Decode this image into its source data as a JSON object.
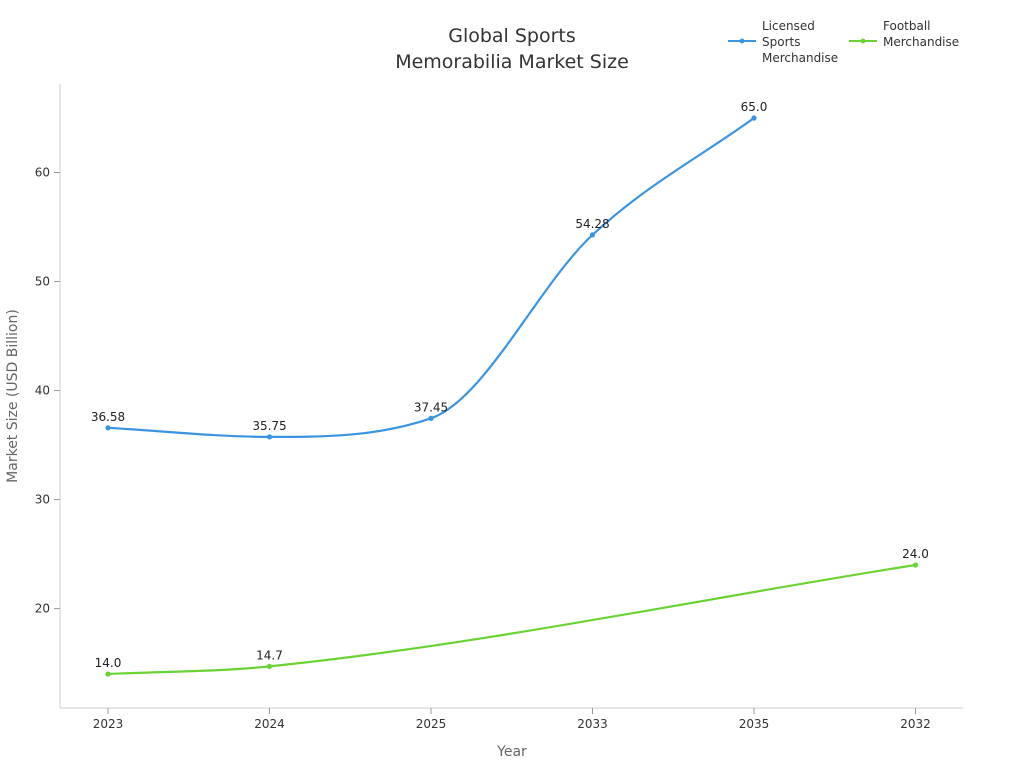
{
  "chart_data": {
    "type": "line",
    "title": "Global Sports\nMemorabilia Market Size",
    "xlabel": "Year",
    "ylabel": "Market Size (USD Billion)",
    "categories": [
      "2023",
      "2024",
      "2025",
      "2033",
      "2035",
      "2032"
    ],
    "ylim": [
      11,
      68
    ],
    "yticks": [
      20,
      30,
      40,
      50,
      60
    ],
    "grid": false,
    "legend_position": "top-right",
    "series": [
      {
        "name": "Licensed\nSports\nMerchandise",
        "color": "#3b94df",
        "values": [
          36.58,
          35.75,
          37.45,
          54.28,
          65.0,
          null
        ],
        "labels": [
          "36.58",
          "35.75",
          "37.45",
          "54.28",
          "65.0",
          null
        ]
      },
      {
        "name": "Football\nMerchandise",
        "color": "#6ad232",
        "values": [
          14.0,
          14.7,
          null,
          null,
          null,
          24.0
        ],
        "labels": [
          "14.0",
          "14.7",
          null,
          null,
          null,
          "24.0"
        ]
      }
    ]
  }
}
